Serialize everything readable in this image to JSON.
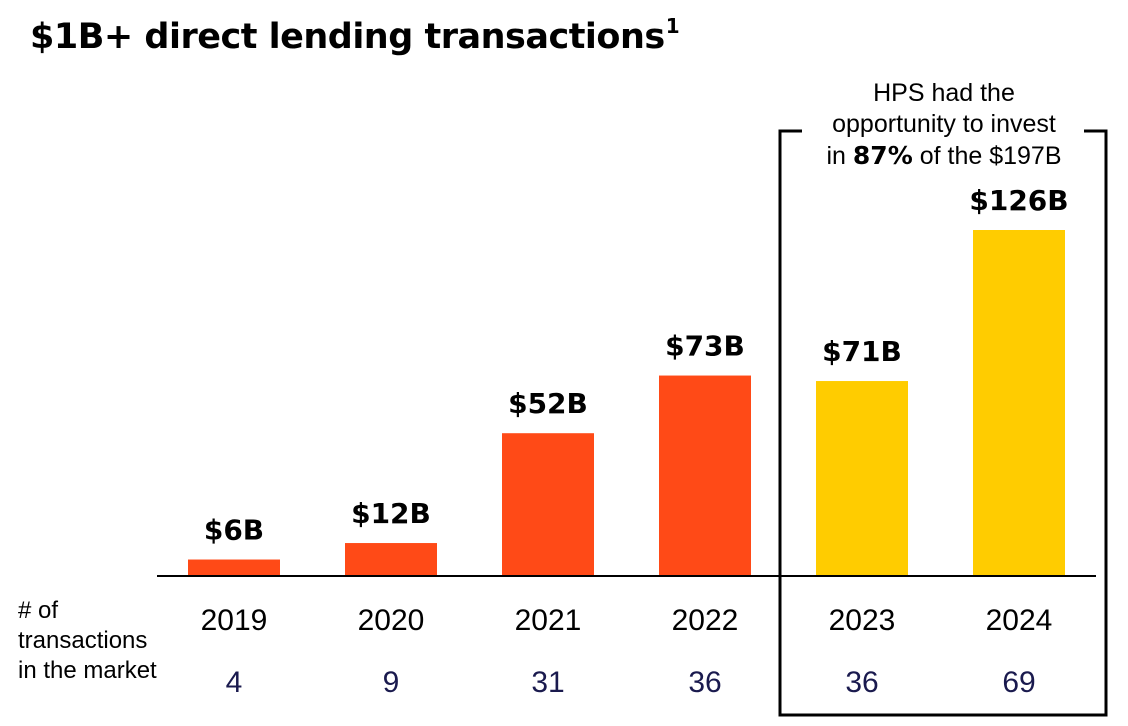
{
  "title": {
    "text": "$1B+ direct lending transactions",
    "footnote": "1"
  },
  "colors": {
    "historic": "#ff4a17",
    "highlight": "#ffcc00",
    "axis": "#000000",
    "count_text": "#1a1a4e"
  },
  "annotation": {
    "line1": "HPS had the",
    "line2": "opportunity to invest",
    "line3_pre": "in",
    "line3_bold": "87%",
    "line3_post": "of the $197B"
  },
  "row_label": {
    "line1": "# of",
    "line2": "transactions",
    "line3": "in the market"
  },
  "chart_data": {
    "type": "bar",
    "title": "$1B+ direct lending transactions",
    "categories": [
      "2019",
      "2020",
      "2021",
      "2022",
      "2023",
      "2024"
    ],
    "values": [
      6,
      12,
      52,
      73,
      71,
      126
    ],
    "value_labels": [
      "$6B",
      "$12B",
      "$52B",
      "$73B",
      "$71B",
      "$126B"
    ],
    "transaction_counts": [
      "4",
      "9",
      "31",
      "36",
      "36",
      "69"
    ],
    "highlighted_categories": [
      "2023",
      "2024"
    ],
    "ylim": [
      0,
      126
    ],
    "grid": false,
    "legend": "none"
  }
}
